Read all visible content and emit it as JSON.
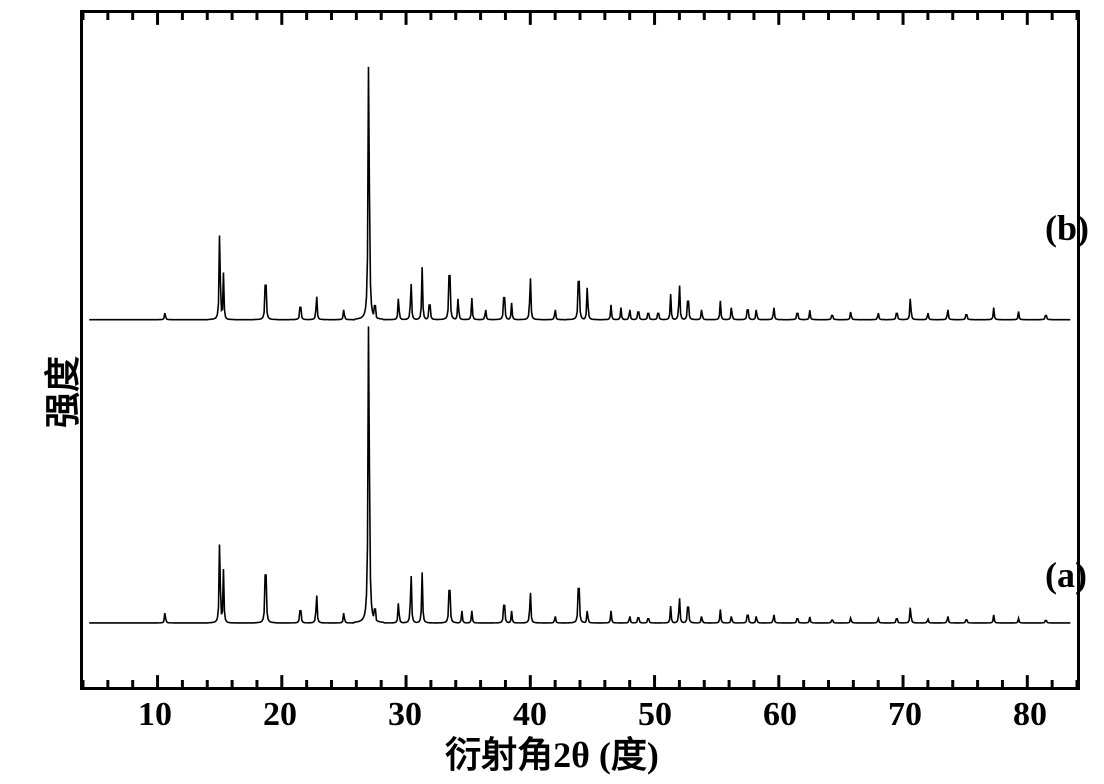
{
  "chart": {
    "type": "line",
    "xlabel": "衍射角2θ (度)",
    "ylabel": "强度",
    "label_fontsize": 36,
    "tick_fontsize": 34,
    "xlim": [
      4,
      84
    ],
    "xticks": [
      10,
      20,
      30,
      40,
      50,
      60,
      70,
      80
    ],
    "minor_tick_step": 2,
    "background_color": "#ffffff",
    "border_color": "#000000",
    "line_color": "#000000",
    "line_width": 1.6,
    "tick_length_major": 12,
    "tick_length_minor": 7,
    "series": [
      {
        "name": "a",
        "label": "(a)",
        "baseline_frac": 0.905,
        "label_pos": {
          "x": 0.965,
          "y": 0.8
        },
        "peaks": [
          {
            "x": 10.6,
            "h": 0.018
          },
          {
            "x": 15.0,
            "h": 0.14
          },
          {
            "x": 15.3,
            "h": 0.08
          },
          {
            "x": 18.7,
            "h": 0.13
          },
          {
            "x": 21.5,
            "h": 0.035
          },
          {
            "x": 22.8,
            "h": 0.05
          },
          {
            "x": 25.0,
            "h": 0.018
          },
          {
            "x": 27.0,
            "h": 0.5
          },
          {
            "x": 27.5,
            "h": 0.04
          },
          {
            "x": 29.4,
            "h": 0.036
          },
          {
            "x": 30.4,
            "h": 0.085
          },
          {
            "x": 31.3,
            "h": 0.075
          },
          {
            "x": 33.5,
            "h": 0.09
          },
          {
            "x": 34.5,
            "h": 0.018
          },
          {
            "x": 35.3,
            "h": 0.018
          },
          {
            "x": 37.9,
            "h": 0.05
          },
          {
            "x": 38.5,
            "h": 0.018
          },
          {
            "x": 40.0,
            "h": 0.055
          },
          {
            "x": 42.0,
            "h": 0.012
          },
          {
            "x": 43.9,
            "h": 0.095
          },
          {
            "x": 44.6,
            "h": 0.022
          },
          {
            "x": 46.5,
            "h": 0.018
          },
          {
            "x": 48.0,
            "h": 0.012
          },
          {
            "x": 48.7,
            "h": 0.015
          },
          {
            "x": 49.5,
            "h": 0.012
          },
          {
            "x": 51.3,
            "h": 0.025
          },
          {
            "x": 52.0,
            "h": 0.045
          },
          {
            "x": 52.7,
            "h": 0.045
          },
          {
            "x": 53.8,
            "h": 0.012
          },
          {
            "x": 55.3,
            "h": 0.02
          },
          {
            "x": 56.2,
            "h": 0.012
          },
          {
            "x": 57.5,
            "h": 0.022
          },
          {
            "x": 58.2,
            "h": 0.012
          },
          {
            "x": 59.6,
            "h": 0.015
          },
          {
            "x": 61.5,
            "h": 0.012
          },
          {
            "x": 62.5,
            "h": 0.009
          },
          {
            "x": 64.3,
            "h": 0.008
          },
          {
            "x": 65.8,
            "h": 0.009
          },
          {
            "x": 68.0,
            "h": 0.008
          },
          {
            "x": 69.5,
            "h": 0.012
          },
          {
            "x": 70.6,
            "h": 0.028
          },
          {
            "x": 72.0,
            "h": 0.007
          },
          {
            "x": 73.6,
            "h": 0.012
          },
          {
            "x": 75.1,
            "h": 0.009
          },
          {
            "x": 77.3,
            "h": 0.012
          },
          {
            "x": 79.3,
            "h": 0.007
          },
          {
            "x": 81.5,
            "h": 0.007
          }
        ]
      },
      {
        "name": "b",
        "label": "(b)",
        "baseline_frac": 0.455,
        "label_pos": {
          "x": 0.965,
          "y": 0.29
        },
        "peaks": [
          {
            "x": 10.6,
            "h": 0.012
          },
          {
            "x": 15.0,
            "h": 0.15
          },
          {
            "x": 15.3,
            "h": 0.07
          },
          {
            "x": 18.7,
            "h": 0.095
          },
          {
            "x": 21.5,
            "h": 0.035
          },
          {
            "x": 22.8,
            "h": 0.042
          },
          {
            "x": 25.0,
            "h": 0.018
          },
          {
            "x": 27.0,
            "h": 0.43
          },
          {
            "x": 27.5,
            "h": 0.04
          },
          {
            "x": 29.4,
            "h": 0.038
          },
          {
            "x": 30.4,
            "h": 0.065
          },
          {
            "x": 31.3,
            "h": 0.078
          },
          {
            "x": 31.9,
            "h": 0.042
          },
          {
            "x": 33.5,
            "h": 0.12
          },
          {
            "x": 34.2,
            "h": 0.038
          },
          {
            "x": 35.3,
            "h": 0.032
          },
          {
            "x": 36.4,
            "h": 0.018
          },
          {
            "x": 37.9,
            "h": 0.062
          },
          {
            "x": 38.5,
            "h": 0.025
          },
          {
            "x": 40.0,
            "h": 0.075
          },
          {
            "x": 42.0,
            "h": 0.018
          },
          {
            "x": 43.9,
            "h": 0.105
          },
          {
            "x": 44.6,
            "h": 0.058
          },
          {
            "x": 46.5,
            "h": 0.022
          },
          {
            "x": 47.3,
            "h": 0.018
          },
          {
            "x": 48.0,
            "h": 0.018
          },
          {
            "x": 48.7,
            "h": 0.022
          },
          {
            "x": 49.5,
            "h": 0.018
          },
          {
            "x": 50.3,
            "h": 0.018
          },
          {
            "x": 51.3,
            "h": 0.038
          },
          {
            "x": 52.0,
            "h": 0.062
          },
          {
            "x": 52.7,
            "h": 0.052
          },
          {
            "x": 53.8,
            "h": 0.018
          },
          {
            "x": 55.3,
            "h": 0.028
          },
          {
            "x": 56.2,
            "h": 0.022
          },
          {
            "x": 57.5,
            "h": 0.028
          },
          {
            "x": 58.2,
            "h": 0.018
          },
          {
            "x": 59.6,
            "h": 0.022
          },
          {
            "x": 61.5,
            "h": 0.018
          },
          {
            "x": 62.5,
            "h": 0.014
          },
          {
            "x": 64.3,
            "h": 0.012
          },
          {
            "x": 65.8,
            "h": 0.014
          },
          {
            "x": 68.0,
            "h": 0.012
          },
          {
            "x": 69.5,
            "h": 0.018
          },
          {
            "x": 70.6,
            "h": 0.038
          },
          {
            "x": 72.0,
            "h": 0.012
          },
          {
            "x": 73.6,
            "h": 0.018
          },
          {
            "x": 75.1,
            "h": 0.014
          },
          {
            "x": 77.3,
            "h": 0.018
          },
          {
            "x": 79.3,
            "h": 0.012
          },
          {
            "x": 81.5,
            "h": 0.012
          }
        ]
      }
    ]
  }
}
